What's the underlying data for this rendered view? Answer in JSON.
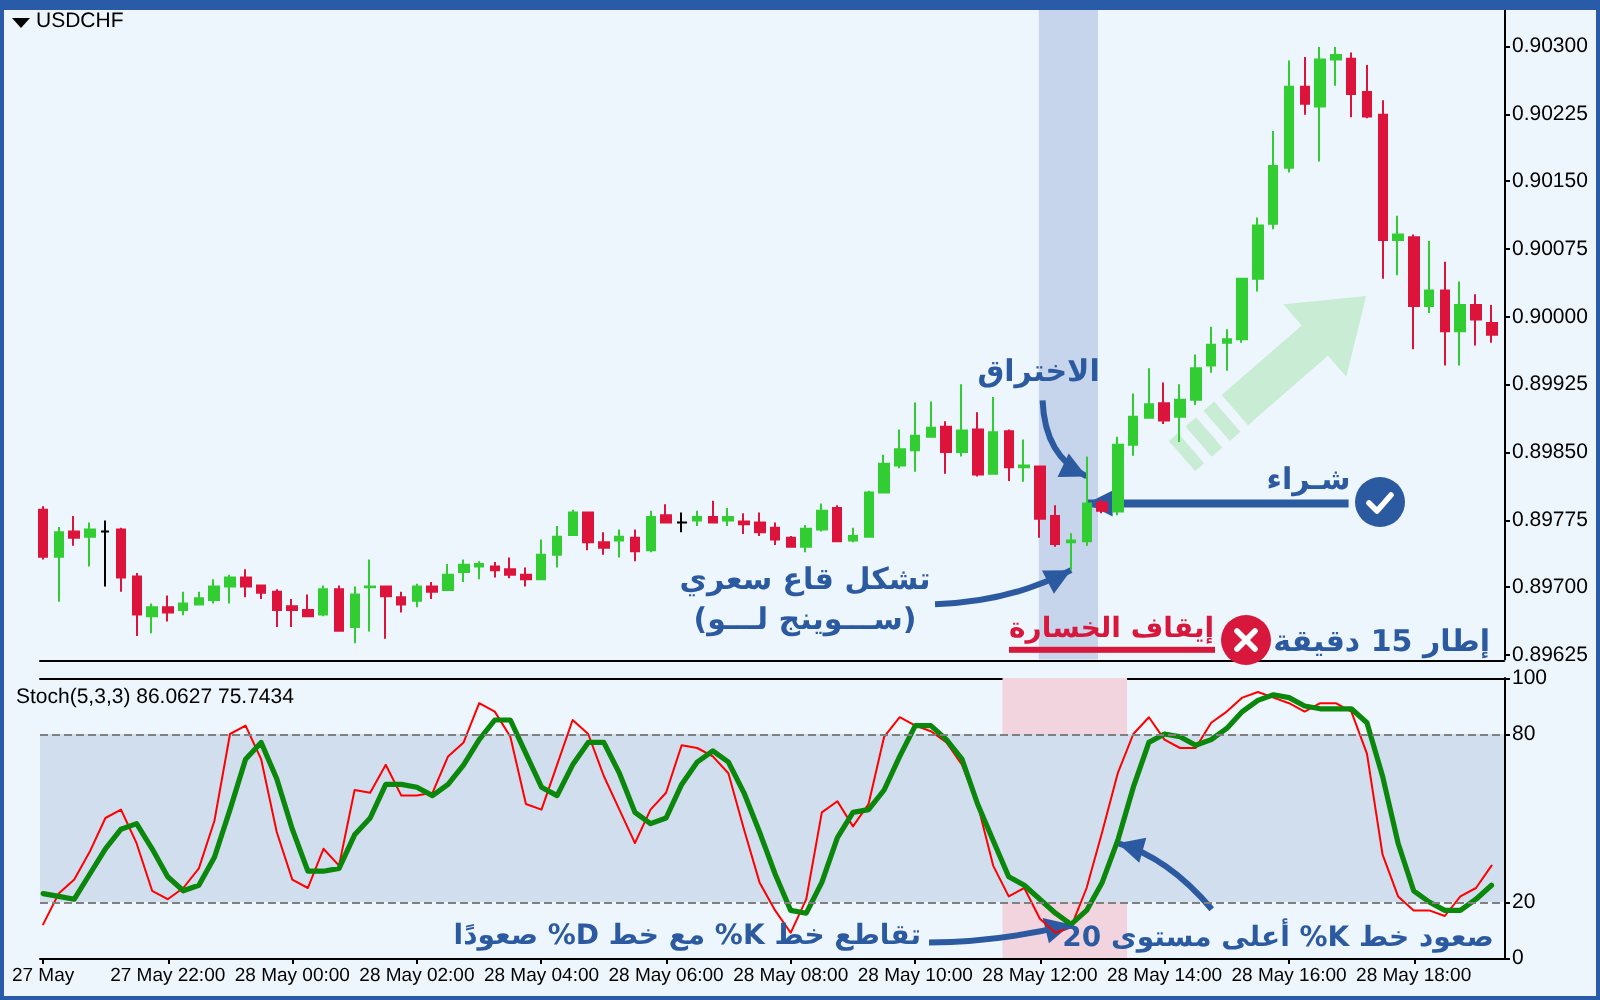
{
  "chart_data": [
    {
      "type": "candlestick",
      "title": "USDCHF",
      "x": [
        "--05-27T20:00",
        "--05-27T20:15",
        "--05-27T20:30",
        "--05-27T20:45",
        "--05-27T21:00",
        "--05-27T21:15",
        "--05-27T21:30",
        "--05-27T21:45",
        "--05-27T22:00",
        "--05-27T22:15",
        "--05-27T22:30",
        "--05-27T22:45",
        "--05-27T23:00",
        "--05-27T23:15",
        "--05-27T23:30",
        "--05-27T23:45",
        "--05-28T00:00",
        "--05-28T00:15",
        "--05-28T00:30",
        "--05-28T00:45",
        "--05-28T01:00",
        "--05-28T01:15",
        "--05-28T01:30",
        "--05-28T01:45",
        "--05-28T02:00",
        "--05-28T02:15",
        "--05-28T02:30",
        "--05-28T02:45",
        "--05-28T03:00",
        "--05-28T03:15",
        "--05-28T03:30",
        "--05-28T03:45",
        "--05-28T04:00",
        "--05-28T04:15",
        "--05-28T04:30",
        "--05-28T04:45",
        "--05-28T05:00",
        "--05-28T05:15",
        "--05-28T05:30",
        "--05-28T05:45",
        "--05-28T06:00",
        "--05-28T06:15",
        "--05-28T06:30",
        "--05-28T06:45",
        "--05-28T07:00",
        "--05-28T07:15",
        "--05-28T07:30",
        "--05-28T07:45",
        "--05-28T08:00",
        "--05-28T08:15",
        "--05-28T08:30",
        "--05-28T08:45",
        "--05-28T09:00",
        "--05-28T09:15",
        "--05-28T09:30",
        "--05-28T09:45",
        "--05-28T10:00",
        "--05-28T10:15",
        "--05-28T10:30",
        "--05-28T10:45",
        "--05-28T11:00",
        "--05-28T11:15",
        "--05-28T11:30",
        "--05-28T11:45",
        "--05-28T12:00",
        "--05-28T12:15",
        "--05-28T12:30",
        "--05-28T12:45",
        "--05-28T13:00",
        "--05-28T13:15",
        "--05-28T13:30",
        "--05-28T13:45",
        "--05-28T14:00",
        "--05-28T14:15",
        "--05-28T14:30",
        "--05-28T14:45",
        "--05-28T15:00",
        "--05-28T15:15",
        "--05-28T15:30",
        "--05-28T15:45",
        "--05-28T16:00",
        "--05-28T16:15",
        "--05-28T16:30",
        "--05-28T16:45",
        "--05-28T17:00",
        "--05-28T17:15",
        "--05-28T17:30",
        "--05-28T17:45",
        "--05-28T18:00",
        "--05-28T18:15",
        "--05-28T18:30",
        "--05-28T18:45",
        "--05-28T19:00",
        "--05-28T19:15"
      ],
      "ohlc": [
        [
          0.89786,
          0.8979,
          0.89731,
          0.89734
        ],
        [
          0.89734,
          0.89767,
          0.89684,
          0.89761
        ],
        [
          0.89762,
          0.89779,
          0.89746,
          0.89755
        ],
        [
          0.89756,
          0.89772,
          0.89723,
          0.89764
        ],
        [
          0.89762,
          0.89774,
          0.89701,
          0.89762
        ],
        [
          0.89764,
          0.89766,
          0.89695,
          0.89711
        ],
        [
          0.89712,
          0.89716,
          0.89646,
          0.8967
        ],
        [
          0.89668,
          0.89682,
          0.89649,
          0.89678
        ],
        [
          0.89678,
          0.89691,
          0.89662,
          0.89672
        ],
        [
          0.89675,
          0.89695,
          0.89669,
          0.89682
        ],
        [
          0.89681,
          0.89695,
          0.8968,
          0.89688
        ],
        [
          0.89686,
          0.89709,
          0.89682,
          0.89701
        ],
        [
          0.89701,
          0.89714,
          0.89682,
          0.89711
        ],
        [
          0.89711,
          0.8972,
          0.89689,
          0.89701
        ],
        [
          0.89702,
          0.89702,
          0.89687,
          0.89694
        ],
        [
          0.89695,
          0.89698,
          0.89656,
          0.89675
        ],
        [
          0.89679,
          0.89687,
          0.89656,
          0.89675
        ],
        [
          0.89675,
          0.89692,
          0.89668,
          0.89668
        ],
        [
          0.8967,
          0.89702,
          0.89668,
          0.89698
        ],
        [
          0.89698,
          0.89702,
          0.89651,
          0.89652
        ],
        [
          0.89656,
          0.89701,
          0.89638,
          0.89692
        ],
        [
          0.897,
          0.89731,
          0.89651,
          0.89701
        ],
        [
          0.89701,
          0.89701,
          0.89643,
          0.8969
        ],
        [
          0.89689,
          0.89695,
          0.89672,
          0.89681
        ],
        [
          0.89685,
          0.89704,
          0.89678,
          0.89701
        ],
        [
          0.89701,
          0.89706,
          0.89687,
          0.89695
        ],
        [
          0.89697,
          0.89726,
          0.89697,
          0.89714
        ],
        [
          0.89717,
          0.89731,
          0.89706,
          0.89725
        ],
        [
          0.89723,
          0.89729,
          0.89709,
          0.89726
        ],
        [
          0.89723,
          0.89728,
          0.89711,
          0.89719
        ],
        [
          0.8972,
          0.89733,
          0.8971,
          0.89714
        ],
        [
          0.89714,
          0.89722,
          0.89701,
          0.89709
        ],
        [
          0.89709,
          0.89753,
          0.89709,
          0.89736
        ],
        [
          0.89736,
          0.89768,
          0.89722,
          0.89756
        ],
        [
          0.89758,
          0.89786,
          0.89758,
          0.89783
        ],
        [
          0.89783,
          0.89783,
          0.89741,
          0.8975
        ],
        [
          0.8975,
          0.89761,
          0.89736,
          0.89744
        ],
        [
          0.89752,
          0.89764,
          0.89733,
          0.89756
        ],
        [
          0.89755,
          0.89764,
          0.89729,
          0.8974
        ],
        [
          0.89741,
          0.89785,
          0.89739,
          0.89778
        ],
        [
          0.8978,
          0.89792,
          0.89771,
          0.89772
        ],
        [
          0.89772,
          0.89783,
          0.89761,
          0.89772
        ],
        [
          0.89774,
          0.89785,
          0.89768,
          0.89778
        ],
        [
          0.89778,
          0.89796,
          0.89771,
          0.89772
        ],
        [
          0.89774,
          0.89788,
          0.89768,
          0.89778
        ],
        [
          0.89773,
          0.89782,
          0.89759,
          0.8977
        ],
        [
          0.89772,
          0.89783,
          0.89757,
          0.89761
        ],
        [
          0.89766,
          0.89772,
          0.89747,
          0.89753
        ],
        [
          0.89755,
          0.89757,
          0.89745,
          0.89745
        ],
        [
          0.89745,
          0.89769,
          0.89739,
          0.89765
        ],
        [
          0.89764,
          0.89793,
          0.89762,
          0.89785
        ],
        [
          0.89788,
          0.89791,
          0.89751,
          0.89751
        ],
        [
          0.89752,
          0.89766,
          0.8975,
          0.89757
        ],
        [
          0.89756,
          0.89807,
          0.89756,
          0.89805
        ],
        [
          0.89805,
          0.89847,
          0.89804,
          0.89837
        ],
        [
          0.89835,
          0.89875,
          0.89832,
          0.89853
        ],
        [
          0.89852,
          0.89905,
          0.89828,
          0.89868
        ],
        [
          0.89867,
          0.89906,
          0.89866,
          0.89877
        ],
        [
          0.89878,
          0.89884,
          0.89826,
          0.8985
        ],
        [
          0.8985,
          0.89925,
          0.89845,
          0.89874
        ],
        [
          0.89875,
          0.89894,
          0.89823,
          0.89825
        ],
        [
          0.89826,
          0.89911,
          0.89825,
          0.89872
        ],
        [
          0.89873,
          0.89875,
          0.89818,
          0.89833
        ],
        [
          0.89833,
          0.89864,
          0.89817,
          0.89835
        ],
        [
          0.89834,
          0.89834,
          0.89755,
          0.89776
        ],
        [
          0.89779,
          0.89791,
          0.89745,
          0.89748
        ],
        [
          0.8975,
          0.8976,
          0.89719,
          0.89752
        ],
        [
          0.89751,
          0.89845,
          0.89746,
          0.89793
        ],
        [
          0.89794,
          0.89797,
          0.89782,
          0.89785
        ],
        [
          0.89784,
          0.89867,
          0.8978,
          0.89858
        ],
        [
          0.89858,
          0.89915,
          0.89846,
          0.89889
        ],
        [
          0.89888,
          0.89943,
          0.89888,
          0.89903
        ],
        [
          0.89904,
          0.89927,
          0.89881,
          0.89885
        ],
        [
          0.89889,
          0.89925,
          0.89861,
          0.89908
        ],
        [
          0.89908,
          0.89958,
          0.89902,
          0.89943
        ],
        [
          0.89946,
          0.89989,
          0.89938,
          0.89969
        ],
        [
          0.89971,
          0.89986,
          0.8994,
          0.89975
        ],
        [
          0.89975,
          0.90042,
          0.89971,
          0.90042
        ],
        [
          0.90042,
          0.9011,
          0.90028,
          0.90101
        ],
        [
          0.90103,
          0.90206,
          0.90097,
          0.90167
        ],
        [
          0.90165,
          0.90284,
          0.9016,
          0.90255
        ],
        [
          0.90255,
          0.90288,
          0.90224,
          0.90236
        ],
        [
          0.90233,
          0.90299,
          0.90172,
          0.90285
        ],
        [
          0.90285,
          0.90299,
          0.90256,
          0.9029
        ],
        [
          0.90286,
          0.90293,
          0.90221,
          0.90247
        ],
        [
          0.90249,
          0.90279,
          0.9022,
          0.90222
        ],
        [
          0.90224,
          0.9024,
          0.90042,
          0.90085
        ],
        [
          0.90085,
          0.90112,
          0.90046,
          0.90091
        ],
        [
          0.90088,
          0.90091,
          0.89964,
          0.90012
        ],
        [
          0.90012,
          0.90084,
          0.90004,
          0.90029
        ],
        [
          0.90029,
          0.90061,
          0.89946,
          0.89984
        ],
        [
          0.89984,
          0.90039,
          0.89946,
          0.90013
        ],
        [
          0.90013,
          0.90025,
          0.89968,
          0.89997
        ],
        [
          0.89993,
          0.90013,
          0.89971,
          0.8998
        ]
      ],
      "colors": [
        "#dc143c",
        "#32cd32",
        "#dc143c",
        "#32cd32",
        "#000000",
        "#dc143c",
        "#dc143c",
        "#32cd32",
        "#dc143c",
        "#32cd32",
        "#32cd32",
        "#32cd32",
        "#32cd32",
        "#dc143c",
        "#dc143c",
        "#dc143c",
        "#dc143c",
        "#dc143c",
        "#32cd32",
        "#dc143c",
        "#32cd32",
        "#32cd32",
        "#dc143c",
        "#dc143c",
        "#32cd32",
        "#dc143c",
        "#32cd32",
        "#32cd32",
        "#32cd32",
        "#dc143c",
        "#dc143c",
        "#dc143c",
        "#32cd32",
        "#32cd32",
        "#32cd32",
        "#dc143c",
        "#dc143c",
        "#32cd32",
        "#dc143c",
        "#32cd32",
        "#dc143c",
        "#000000",
        "#32cd32",
        "#dc143c",
        "#32cd32",
        "#dc143c",
        "#dc143c",
        "#dc143c",
        "#dc143c",
        "#32cd32",
        "#32cd32",
        "#dc143c",
        "#32cd32",
        "#32cd32",
        "#32cd32",
        "#32cd32",
        "#32cd32",
        "#32cd32",
        "#dc143c",
        "#32cd32",
        "#dc143c",
        "#32cd32",
        "#dc143c",
        "#32cd32",
        "#dc143c",
        "#dc143c",
        "#32cd32",
        "#32cd32",
        "#dc143c",
        "#32cd32",
        "#32cd32",
        "#32cd32",
        "#dc143c",
        "#32cd32",
        "#32cd32",
        "#32cd32",
        "#32cd32",
        "#32cd32",
        "#32cd32",
        "#32cd32",
        "#32cd32",
        "#dc143c",
        "#32cd32",
        "#32cd32",
        "#dc143c",
        "#dc143c",
        "#dc143c",
        "#32cd32",
        "#dc143c",
        "#32cd32",
        "#dc143c",
        "#32cd32",
        "#dc143c",
        "#dc143c"
      ],
      "xlim": [
        "--05-27T19:57",
        "--05-28T19:27"
      ],
      "ylim": [
        0.8962,
        0.9034
      ],
      "yticks": [
        {
          "value": 0.89625,
          "label": "0.89625"
        },
        {
          "value": 0.897,
          "label": "0.89700"
        },
        {
          "value": 0.89775,
          "label": "0.89775"
        },
        {
          "value": 0.8985,
          "label": "0.89850"
        },
        {
          "value": 0.89925,
          "label": "0.89925"
        },
        {
          "value": 0.9,
          "label": "0.90000"
        },
        {
          "value": 0.90075,
          "label": "0.90075"
        },
        {
          "value": 0.9015,
          "label": "0.90150"
        },
        {
          "value": 0.90225,
          "label": "0.90225"
        },
        {
          "value": 0.903,
          "label": "0.90300"
        }
      ],
      "tick_labels": "y",
      "bands": [
        {
          "axis": "x",
          "from": "--05-28T11:59",
          "to": "--05-28T12:56",
          "color": "#c6d5eb"
        }
      ],
      "annotations": [
        {
          "text": "الاختراق",
          "x": "--05-28T12:45",
          "y": 0.89823
        },
        {
          "text": "تشكل قاع سعري\n(ســـوينج لـــو)",
          "x": "--05-28T12:30",
          "y": 0.89719
        },
        {
          "text": "شـراء",
          "x": "--05-28T12:45",
          "y": 0.89793
        },
        "إيقاف الخسارة",
        "إطار 15 دقيقة"
      ]
    },
    {
      "type": "line",
      "title": "Stoch(5,3,3) 86.0627 75.7434",
      "x": [
        "--05-27T20:00",
        "--05-27T20:15",
        "--05-27T20:30",
        "--05-27T20:45",
        "--05-27T21:00",
        "--05-27T21:15",
        "--05-27T21:30",
        "--05-27T21:45",
        "--05-27T22:00",
        "--05-27T22:15",
        "--05-27T22:30",
        "--05-27T22:45",
        "--05-27T23:00",
        "--05-27T23:15",
        "--05-27T23:30",
        "--05-27T23:45",
        "--05-28T00:00",
        "--05-28T00:15",
        "--05-28T00:30",
        "--05-28T00:45",
        "--05-28T01:00",
        "--05-28T01:15",
        "--05-28T01:30",
        "--05-28T01:45",
        "--05-28T02:00",
        "--05-28T02:15",
        "--05-28T02:30",
        "--05-28T02:45",
        "--05-28T03:00",
        "--05-28T03:15",
        "--05-28T03:30",
        "--05-28T03:45",
        "--05-28T04:00",
        "--05-28T04:15",
        "--05-28T04:30",
        "--05-28T04:45",
        "--05-28T05:00",
        "--05-28T05:15",
        "--05-28T05:30",
        "--05-28T05:45",
        "--05-28T06:00",
        "--05-28T06:15",
        "--05-28T06:30",
        "--05-28T06:45",
        "--05-28T07:00",
        "--05-28T07:15",
        "--05-28T07:30",
        "--05-28T07:45",
        "--05-28T08:00",
        "--05-28T08:15",
        "--05-28T08:30",
        "--05-28T08:45",
        "--05-28T09:00",
        "--05-28T09:15",
        "--05-28T09:30",
        "--05-28T09:45",
        "--05-28T10:00",
        "--05-28T10:15",
        "--05-28T10:30",
        "--05-28T10:45",
        "--05-28T11:00",
        "--05-28T11:15",
        "--05-28T11:30",
        "--05-28T11:45",
        "--05-28T12:00",
        "--05-28T12:15",
        "--05-28T12:30",
        "--05-28T12:45",
        "--05-28T13:00",
        "--05-28T13:15",
        "--05-28T13:30",
        "--05-28T13:45",
        "--05-28T14:00",
        "--05-28T14:15",
        "--05-28T14:30",
        "--05-28T14:45",
        "--05-28T15:00",
        "--05-28T15:15",
        "--05-28T15:30",
        "--05-28T15:45",
        "--05-28T16:00",
        "--05-28T16:15",
        "--05-28T16:30",
        "--05-28T16:45",
        "--05-28T17:00",
        "--05-28T17:15",
        "--05-28T17:30",
        "--05-28T17:45",
        "--05-28T18:00",
        "--05-28T18:15",
        "--05-28T18:30",
        "--05-28T18:45",
        "--05-28T19:00",
        "--05-28T19:15"
      ],
      "series": [
        {
          "color": "#ff0000",
          "values": [
            12,
            23,
            28,
            38,
            50,
            53,
            41,
            24,
            21,
            25,
            32,
            49,
            80,
            83,
            71,
            45,
            28,
            25,
            39,
            33,
            60,
            59,
            69,
            58,
            58,
            59,
            72,
            77,
            91,
            88,
            79,
            55,
            53,
            69,
            85,
            80,
            65,
            53,
            41,
            53,
            59,
            76,
            75,
            72,
            66,
            46,
            27,
            17,
            9,
            21,
            52,
            56,
            47,
            55,
            79,
            86,
            83,
            81,
            77,
            69,
            55,
            33,
            22,
            25,
            14,
            9,
            11,
            25,
            45,
            66,
            80,
            86,
            78,
            75,
            75,
            84,
            88,
            93,
            95,
            93,
            91,
            88,
            91,
            91,
            88,
            73,
            37,
            22,
            17,
            17,
            15,
            22,
            25,
            33
          ]
        },
        {
          "color": "#0b870b",
          "values": [
            23,
            22,
            21,
            30,
            39,
            46,
            48,
            39,
            29,
            24,
            26,
            36,
            53,
            71,
            77,
            64,
            46,
            31,
            31,
            32,
            44,
            50,
            62,
            62,
            61,
            58,
            62,
            69,
            78,
            85,
            85,
            73,
            61,
            58,
            69,
            77,
            77,
            66,
            52,
            48,
            50,
            62,
            70,
            74,
            70,
            59,
            45,
            30,
            17,
            16,
            27,
            43,
            52,
            53,
            60,
            72,
            83,
            83,
            78,
            71,
            55,
            42,
            29,
            26,
            21,
            16,
            12,
            17,
            27,
            42,
            61,
            77,
            80,
            79,
            76,
            78,
            82,
            88,
            92,
            94,
            93,
            90,
            89,
            89,
            89,
            84,
            65,
            41,
            24,
            20,
            17,
            17,
            21,
            26
          ]
        }
      ],
      "xlim": [
        "--05-27T19:57",
        "--05-28T19:27"
      ],
      "xticks": [
        {
          "value": "--05-27T20:00",
          "label": "27 May"
        },
        {
          "value": "--05-27T22:00",
          "label": "27 May 22:00"
        },
        {
          "value": "--05-28T00:00",
          "label": "28 May 00:00"
        },
        {
          "value": "--05-28T02:00",
          "label": "28 May 02:00"
        },
        {
          "value": "--05-28T04:00",
          "label": "28 May 04:00"
        },
        {
          "value": "--05-28T06:00",
          "label": "28 May 06:00"
        },
        {
          "value": "--05-28T08:00",
          "label": "28 May 08:00"
        },
        {
          "value": "--05-28T10:00",
          "label": "28 May 10:00"
        },
        {
          "value": "--05-28T12:00",
          "label": "28 May 12:00"
        },
        {
          "value": "--05-28T14:00",
          "label": "28 May 14:00"
        },
        {
          "value": "--05-28T16:00",
          "label": "28 May 16:00"
        },
        {
          "value": "--05-28T18:00",
          "label": "28 May 18:00"
        }
      ],
      "ylim": [
        0,
        100
      ],
      "yticks": [
        0,
        20,
        80,
        100
      ],
      "ref_lines": [
        {
          "axis": "y",
          "value": 80,
          "color": "#808080",
          "line_style": "dashed"
        },
        {
          "axis": "y",
          "value": 20,
          "color": "#808080",
          "line_style": "dashed"
        }
      ],
      "bands": [
        {
          "axis": "y",
          "from": 20,
          "to": 80,
          "color": "#d1deee"
        },
        {
          "axis": "x",
          "from": "--05-28T11:24",
          "to": "--05-28T13:24",
          "color": "#f1d4de"
        }
      ],
      "annotations": [
        {
          "text": "تقاطع خط K% مع خط D% صعودًا",
          "x": "--05-28T12:30",
          "y": 12
        },
        {
          "text": "صعود خط K% أعلى مستوى 20",
          "x": "--05-28T13:15",
          "y": 41
        }
      ]
    }
  ]
}
